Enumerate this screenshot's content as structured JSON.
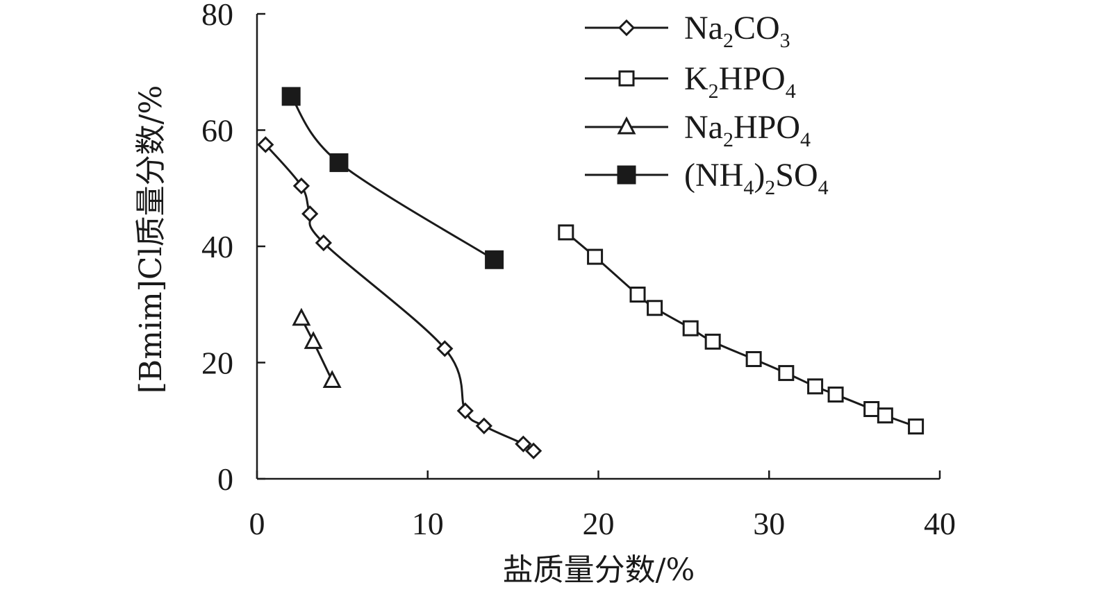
{
  "chart_data": {
    "type": "line",
    "xlabel": "盐质量分数/%",
    "ylabel": "[Bmim]Cl质量分数/%",
    "xlim": [
      0,
      40
    ],
    "ylim": [
      0,
      80
    ],
    "xticks": [
      "0",
      "10",
      "20",
      "30",
      "40"
    ],
    "yticks": [
      "0",
      "20",
      "40",
      "60",
      "80"
    ],
    "grid": false,
    "legend_position": "top-right",
    "series": [
      {
        "name": "Na2CO3",
        "legend": {
          "parts": [
            [
              "Na",
              ""
            ],
            [
              "2",
              "sub"
            ],
            [
              "CO",
              ""
            ],
            [
              "3",
              "sub"
            ]
          ]
        },
        "marker": "diamond-open",
        "x": [
          0.5,
          2.6,
          3.1,
          3.9,
          11.0,
          12.2,
          13.3,
          15.6,
          16.2
        ],
        "y": [
          57.5,
          50.4,
          45.6,
          40.6,
          22.4,
          11.7,
          9.1,
          6.0,
          4.8
        ]
      },
      {
        "name": "K2HPO4",
        "legend": {
          "parts": [
            [
              "K",
              ""
            ],
            [
              "2",
              "sub"
            ],
            [
              "HPO",
              ""
            ],
            [
              "4",
              "sub"
            ]
          ]
        },
        "marker": "square-open",
        "x": [
          18.1,
          19.8,
          22.3,
          23.3,
          25.4,
          26.7,
          29.1,
          31.0,
          32.7,
          33.9,
          36.0,
          36.8,
          38.6
        ],
        "y": [
          42.4,
          38.2,
          31.7,
          29.4,
          25.9,
          23.6,
          20.6,
          18.2,
          15.9,
          14.5,
          12.0,
          10.9,
          9.0
        ]
      },
      {
        "name": "Na2HPO4",
        "legend": {
          "parts": [
            [
              "Na",
              ""
            ],
            [
              "2",
              "sub"
            ],
            [
              "HPO",
              ""
            ],
            [
              "4",
              "sub"
            ]
          ]
        },
        "marker": "triangle-open",
        "x": [
          2.6,
          3.3,
          4.4
        ],
        "y": [
          27.6,
          23.6,
          16.9
        ]
      },
      {
        "name": "(NH4)2SO4",
        "legend": {
          "parts": [
            [
              "(NH",
              ""
            ],
            [
              "4",
              "sub"
            ],
            [
              ")",
              ""
            ],
            [
              "2",
              "sub"
            ],
            [
              "SO",
              ""
            ],
            [
              "4",
              "sub"
            ]
          ]
        },
        "marker": "square-filled",
        "x": [
          2.0,
          4.8,
          13.9
        ],
        "y": [
          65.8,
          54.4,
          37.7
        ]
      }
    ]
  }
}
